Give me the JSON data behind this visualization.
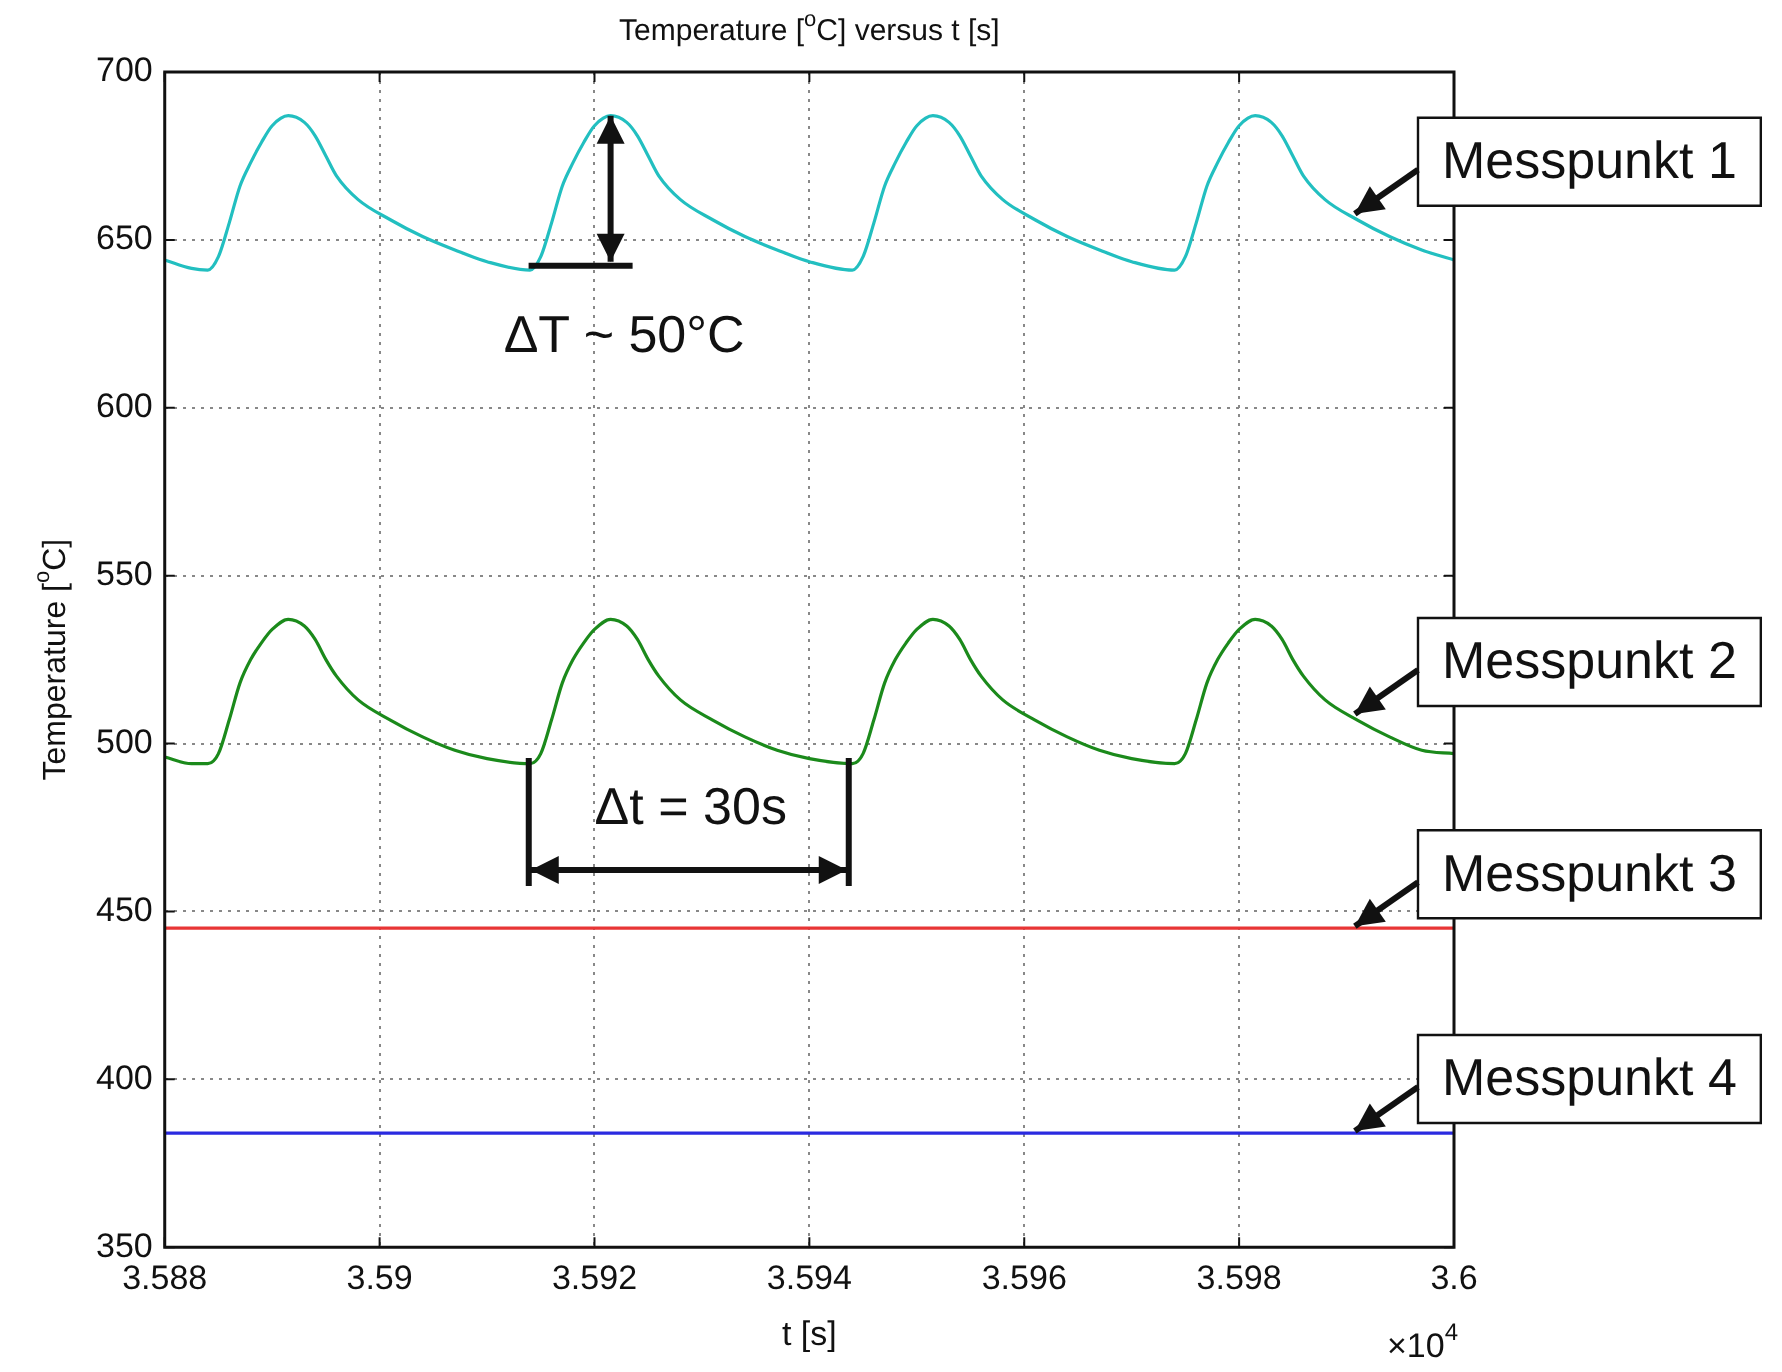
{
  "chart_data": {
    "type": "line",
    "title": "Temperature [$^{o}$C] versus t [s]",
    "xlabel": "t [s]",
    "ylabel": "Temperature [$^{o}$C]",
    "x": [
      3.588,
      3.58825,
      3.5884,
      3.5885,
      3.5886,
      3.5887,
      3.5888,
      3.5889,
      3.589,
      3.58915,
      3.5893,
      3.5894,
      3.5895,
      3.5896,
      3.5898,
      3.5901,
      3.5904,
      3.5907,
      3.591,
      3.5914,
      3.5915,
      3.5916,
      3.5917,
      3.5918,
      3.5919,
      3.592,
      3.59215,
      3.5923,
      3.5924,
      3.5925,
      3.5926,
      3.5928,
      3.5931,
      3.5934,
      3.5937,
      3.594,
      3.5944,
      3.5945,
      3.5946,
      3.5947,
      3.5948,
      3.5949,
      3.595,
      3.59515,
      3.5953,
      3.5954,
      3.5955,
      3.5956,
      3.5958,
      3.5961,
      3.5964,
      3.5967,
      3.597,
      3.5974,
      3.5975,
      3.5976,
      3.5977,
      3.5978,
      3.5979,
      3.598,
      3.59815,
      3.5983,
      3.5984,
      3.5985,
      3.5986,
      3.5988,
      3.5991,
      3.5994,
      3.5997,
      3.6
    ],
    "series": [
      {
        "name": "Messpunkt 1",
        "color": "#22bfc0",
        "values": [
          644,
          641.5,
          641,
          645,
          655,
          666,
          673,
          679,
          684,
          687,
          685,
          681,
          675,
          669,
          662,
          656,
          651,
          647,
          643.5,
          641,
          645,
          655,
          666,
          673,
          679,
          684,
          687,
          685,
          681,
          675,
          669,
          662,
          656,
          651,
          647,
          643.5,
          641,
          645,
          655,
          666,
          673,
          679,
          684,
          687,
          685,
          681,
          675,
          669,
          662,
          656,
          651,
          647,
          643.5,
          641,
          645,
          655,
          666,
          673,
          679,
          684,
          687,
          685,
          681,
          675,
          669,
          662,
          656,
          651,
          647,
          644
        ]
      },
      {
        "name": "Messpunkt 2",
        "color": "#1b8a1b",
        "values": [
          496,
          494,
          494,
          497,
          507,
          518,
          525,
          530,
          534,
          537,
          535,
          531,
          525,
          520,
          513,
          507,
          502,
          498,
          495.5,
          494,
          497,
          507,
          518,
          525,
          530,
          534,
          537,
          535,
          531,
          525,
          520,
          513,
          507,
          502,
          498,
          495.5,
          494,
          497,
          507,
          518,
          525,
          530,
          534,
          537,
          535,
          531,
          525,
          520,
          513,
          507,
          502,
          498,
          495.5,
          494,
          497,
          507,
          518,
          525,
          530,
          534,
          537,
          535,
          531,
          525,
          520,
          513,
          507,
          502,
          498,
          497
        ]
      },
      {
        "name": "Messpunkt 3",
        "color": "#e83535",
        "values": [
          445,
          445,
          445,
          445,
          445,
          445,
          445,
          445,
          445,
          445,
          445,
          445,
          445,
          445,
          445,
          445,
          445,
          445,
          445,
          445,
          445,
          445,
          445,
          445,
          445,
          445,
          445,
          445,
          445,
          445,
          445,
          445,
          445,
          445,
          445,
          445,
          445,
          445,
          445,
          445,
          445,
          445,
          445,
          445,
          445,
          445,
          445,
          445,
          445,
          445,
          445,
          445,
          445,
          445,
          445,
          445,
          445,
          445,
          445,
          445,
          445,
          445,
          445,
          445,
          445,
          445,
          445,
          445,
          445,
          445
        ]
      },
      {
        "name": "Messpunkt 4",
        "color": "#2a2ae0",
        "values": [
          384,
          384,
          384,
          384,
          384,
          384,
          384,
          384,
          384,
          384,
          384,
          384,
          384,
          384,
          384,
          384,
          384,
          384,
          384,
          384,
          384,
          384,
          384,
          384,
          384,
          384,
          384,
          384,
          384,
          384,
          384,
          384,
          384,
          384,
          384,
          384,
          384,
          384,
          384,
          384,
          384,
          384,
          384,
          384,
          384,
          384,
          384,
          384,
          384,
          384,
          384,
          384,
          384,
          384,
          384,
          384,
          384,
          384,
          384,
          384,
          384,
          384,
          384,
          384,
          384,
          384,
          384,
          384,
          384,
          384
        ]
      }
    ],
    "xlim": [
      3.588,
      3.6
    ],
    "xticks": [
      3.588,
      3.59,
      3.592,
      3.594,
      3.596,
      3.598,
      3.6
    ],
    "ylim": [
      350,
      700
    ],
    "yticks": [
      350,
      400,
      450,
      500,
      550,
      600,
      650,
      700
    ],
    "grid": true,
    "legend": false,
    "annotations": [
      {
        "text": "ΔT ~ 50°C",
        "x": 3.59215,
        "y": 687
      },
      "Δt = 30s",
      "×10$^{4}$"
    ]
  }
}
